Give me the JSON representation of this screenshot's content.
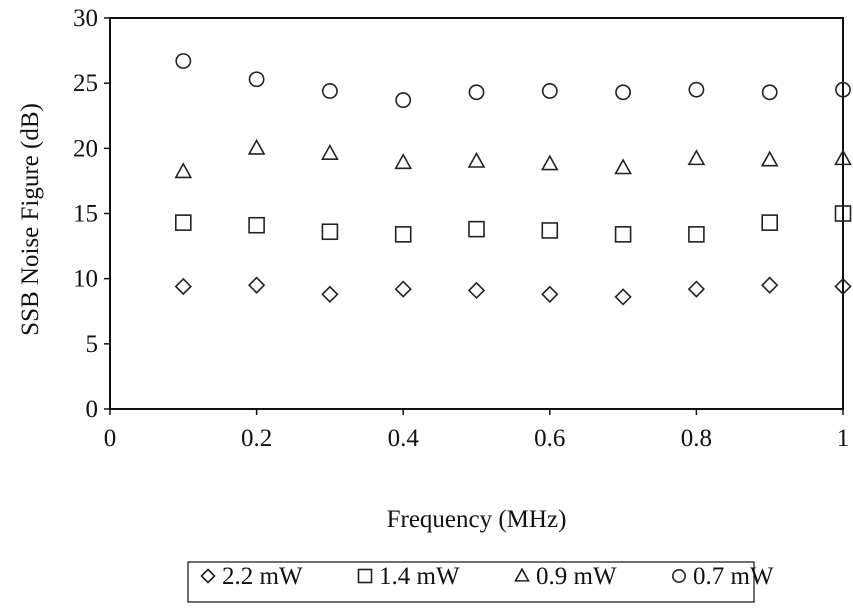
{
  "chart_data": {
    "type": "scatter",
    "title": "",
    "xlabel": "Frequency (MHz)",
    "ylabel": "SSB Noise Figure (dB)",
    "xlim": [
      0,
      1
    ],
    "ylim": [
      0,
      30
    ],
    "xticks": [
      "0",
      "0.2",
      "0.4",
      "0.6",
      "0.8",
      "1"
    ],
    "yticks": [
      "0",
      "5",
      "10",
      "15",
      "20",
      "25",
      "30"
    ],
    "grid": false,
    "legend_position": "bottom",
    "x": [
      0.1,
      0.2,
      0.3,
      0.4,
      0.5,
      0.6,
      0.7,
      0.8,
      0.9,
      1.0
    ],
    "series": [
      {
        "name": "2.2 mW",
        "marker": "diamond",
        "values": [
          9.4,
          9.5,
          8.8,
          9.2,
          9.1,
          8.8,
          8.6,
          9.2,
          9.5,
          9.4
        ]
      },
      {
        "name": "1.4 mW",
        "marker": "square",
        "values": [
          14.3,
          14.1,
          13.6,
          13.4,
          13.8,
          13.7,
          13.4,
          13.4,
          14.3,
          15.0
        ]
      },
      {
        "name": "0.9 mW",
        "marker": "triangle",
        "values": [
          18.2,
          20.0,
          19.6,
          18.9,
          19.0,
          18.8,
          18.5,
          19.2,
          19.1,
          19.2
        ]
      },
      {
        "name": "0.7 mW",
        "marker": "circle",
        "values": [
          26.7,
          25.3,
          24.4,
          23.7,
          24.3,
          24.4,
          24.3,
          24.5,
          24.3,
          24.5
        ]
      }
    ]
  }
}
